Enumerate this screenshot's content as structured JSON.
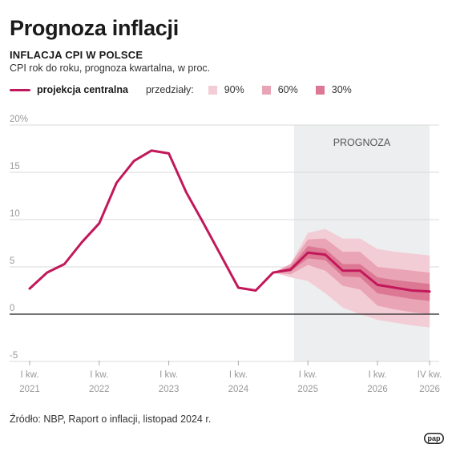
{
  "title": "Prognoza inflacji",
  "subtitle": "INFLACJA CPI W POLSCE",
  "description": "CPI rok do roku, prognoza kwartalna, w proc.",
  "legend": {
    "central_label": "projekcja centralna",
    "intervals_label": "przedziały:",
    "bands": [
      {
        "label": "90%",
        "color": "#f3cdd6"
      },
      {
        "label": "60%",
        "color": "#e9a5b5"
      },
      {
        "label": "30%",
        "color": "#dc7893"
      }
    ]
  },
  "forecast_label": "PROGNOZA",
  "source": "Źródło: NBP, Raport o inflacji, listopad 2024 r.",
  "logo_text": "pap",
  "colors": {
    "central": "#c2185b",
    "band90": "#f3cdd6",
    "band60": "#e9a5b5",
    "band30": "#dc7893",
    "forecast_bg": "#eceef0",
    "grid": "#d9d9d9",
    "zero": "#222222"
  },
  "chart_data": {
    "type": "line",
    "x_start": "2021 Q1",
    "ylim": [
      -5,
      20
    ],
    "y_ticks": [
      "20%",
      "15",
      "10",
      "5",
      "0",
      "-5"
    ],
    "y_tick_values": [
      20,
      15,
      10,
      5,
      0,
      -5
    ],
    "x_ticks": [
      {
        "quarter_index": 0,
        "line1": "I kw.",
        "line2": "2021"
      },
      {
        "quarter_index": 4,
        "line1": "I kw.",
        "line2": "2022"
      },
      {
        "quarter_index": 8,
        "line1": "I kw.",
        "line2": "2023"
      },
      {
        "quarter_index": 12,
        "line1": "I kw.",
        "line2": "2024"
      },
      {
        "quarter_index": 16,
        "line1": "I kw.",
        "line2": "2025"
      },
      {
        "quarter_index": 20,
        "line1": "I kw.",
        "line2": "2026"
      },
      {
        "quarter_index": 23,
        "line1": "IV kw.",
        "line2": "2026"
      }
    ],
    "forecast_range": [
      15.2,
      23
    ],
    "central": [
      2.7,
      4.4,
      5.3,
      7.6,
      9.6,
      13.9,
      16.2,
      17.3,
      17.0,
      12.9,
      9.6,
      6.2,
      2.8,
      2.5,
      4.4,
      4.7,
      6.5,
      6.3,
      4.6,
      4.6,
      3.1,
      2.8,
      2.5,
      2.4
    ],
    "bands_from_index": 14,
    "band30_low": [
      4.4,
      4.5,
      5.9,
      5.7,
      4.0,
      3.9,
      2.2,
      1.9,
      1.6,
      1.4
    ],
    "band30_high": [
      4.4,
      5.0,
      7.2,
      6.9,
      5.3,
      5.3,
      3.9,
      3.6,
      3.4,
      3.2
    ],
    "band60_low": [
      4.4,
      4.2,
      5.2,
      4.6,
      3.0,
      2.6,
      0.9,
      0.5,
      0.2,
      0.0
    ],
    "band60_high": [
      4.4,
      5.3,
      7.9,
      8.0,
      6.6,
      6.6,
      5.0,
      4.8,
      4.6,
      4.4
    ],
    "band90_low": [
      4.4,
      3.9,
      3.5,
      2.2,
      0.7,
      0.0,
      -0.6,
      -0.9,
      -1.2,
      -1.4
    ],
    "band90_high": [
      4.4,
      5.3,
      8.6,
      9.0,
      8.0,
      8.0,
      6.9,
      6.6,
      6.4,
      6.2
    ]
  }
}
